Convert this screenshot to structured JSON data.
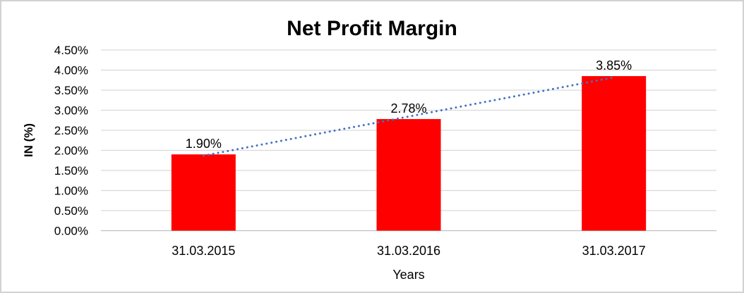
{
  "window": {
    "background": "#ffffff",
    "border_color": "#d2d2d2"
  },
  "chart_data": {
    "type": "bar",
    "title": "Net Profit Margin",
    "categories": [
      "31.03.2015",
      "31.03.2016",
      "31.03.2017"
    ],
    "values": [
      1.9,
      2.78,
      3.85
    ],
    "data_labels": [
      "1.90%",
      "2.78%",
      "3.85%"
    ],
    "xlabel": "Years",
    "ylabel": "IN (%)",
    "ylim": [
      0,
      4.5
    ],
    "ytick_step": 0.5,
    "ytick_labels": [
      "0.00%",
      "0.50%",
      "1.00%",
      "1.50%",
      "2.00%",
      "2.50%",
      "3.00%",
      "3.50%",
      "4.00%",
      "4.50%"
    ],
    "grid": true,
    "legend": "none",
    "bar_color": "#ff0000",
    "gridline_color": "#d9d9d9",
    "axis_line_color": "#bfbfbf",
    "text_color": "#000000",
    "trendline": {
      "fit": "linear",
      "style": "dotted",
      "color": "#4472c4"
    }
  }
}
